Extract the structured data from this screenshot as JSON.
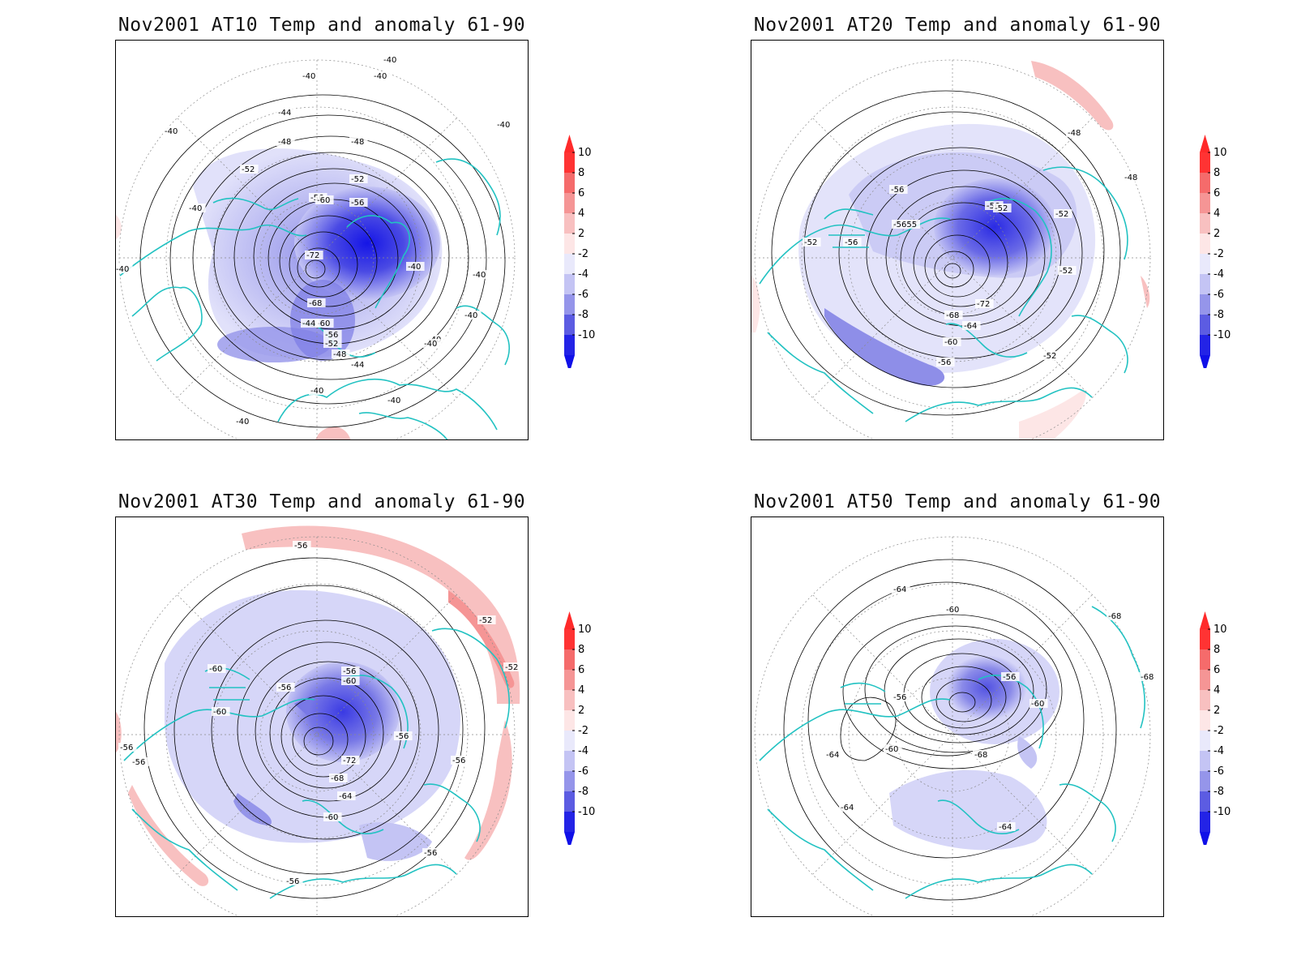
{
  "colorbar": {
    "labels": [
      "10",
      "8",
      "6",
      "4",
      "2",
      "-2",
      "-4",
      "-6",
      "-8",
      "-10"
    ],
    "colors": [
      "#ff3333",
      "#f56b6b",
      "#f59595",
      "#f8c0c0",
      "#fde6e6",
      "#e9e9fb",
      "#c4c4f4",
      "#9595ea",
      "#5c5ce2",
      "#2323e6"
    ],
    "top_arrow_color": "#ff2a2a",
    "bottom_arrow_color": "#1010e8"
  },
  "style": {
    "coast_color": "#22c2c2",
    "contour_color": "#000000",
    "grid_color": "#8a8a8a"
  },
  "panels": [
    {
      "title": "Nov2001 AT10 Temp and anomaly 61-90",
      "contour_labels": [
        "-40",
        "-40",
        "-40",
        "-40",
        "-40",
        "-44",
        "-48",
        "-48",
        "-52",
        "-52",
        "-56",
        "-60",
        "-56",
        "-72",
        "-68",
        "-60",
        "-56",
        "-52",
        "-48",
        "-44",
        "-40",
        "-40",
        "-40",
        "-40",
        "-40",
        "-44",
        "-40",
        "-40",
        "-40",
        "-40",
        "-40"
      ]
    },
    {
      "title": "Nov2001 AT20 Temp and anomaly 61-90",
      "contour_labels": [
        "-48",
        "-48",
        "-56",
        "-56",
        "-52",
        "-52",
        "-52",
        "-56",
        "-5655",
        "-72",
        "-68",
        "-64",
        "-60",
        "-56",
        "-52",
        "-52"
      ]
    },
    {
      "title": "Nov2001 AT30 Temp and anomaly 61-90",
      "contour_labels": [
        "-56",
        "-52",
        "-52",
        "-60",
        "-56",
        "-56",
        "-60",
        "-60",
        "-56",
        "-56",
        "-72",
        "-68",
        "-64",
        "-60",
        "-56",
        "-56",
        "-56",
        "-56"
      ]
    },
    {
      "title": "Nov2001 AT50 Temp and anomaly 61-90",
      "contour_labels": [
        "-64",
        "-60",
        "-68",
        "-68",
        "-56",
        "-56",
        "-60",
        "-64",
        "-60",
        "-68",
        "-64",
        "-64"
      ]
    }
  ]
}
